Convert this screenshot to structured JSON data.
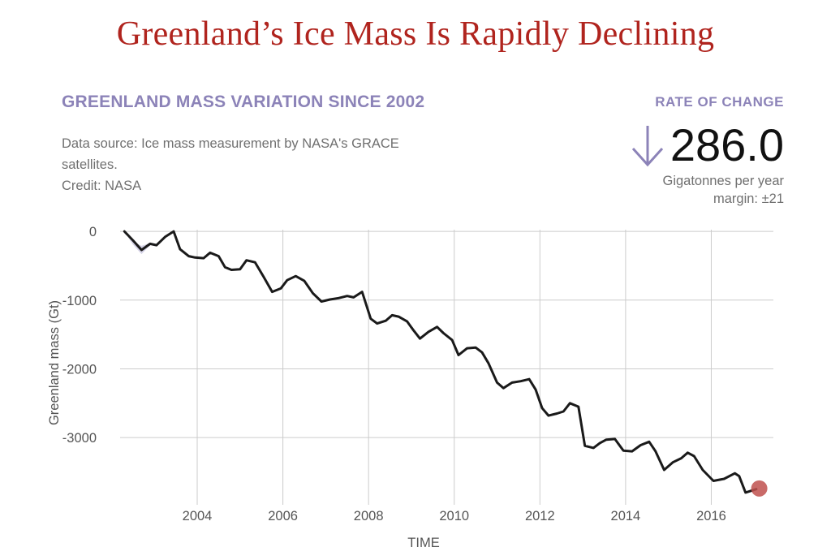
{
  "headline": "Greenland’s Ice Mass Is Rapidly Declining",
  "title": "GREENLAND MASS VARIATION SINCE 2002",
  "source_lines": [
    "Data source: Ice mass measurement by NASA's GRACE",
    "satellites.",
    "Credit: NASA"
  ],
  "rate": {
    "label": "RATE OF CHANGE",
    "value": "286.0",
    "unit": "Gigatonnes per year",
    "margin": "margin: ±21",
    "arrow_icon": "down-arrow-icon",
    "arrow_color": "#8c83b8"
  },
  "colors": {
    "headline": "#b0241e",
    "title": "#8c83b8",
    "line": "#1a1a1a",
    "band": "#b9b5d6",
    "endpoint": "#c0504d",
    "grid": "#cccccc"
  },
  "chart_data": {
    "type": "line",
    "xlabel": "TIME",
    "ylabel": "Greenland mass (Gt)",
    "xlim": [
      2002.2,
      2017.45
    ],
    "ylim": [
      -3860,
      25
    ],
    "x_ticks": [
      2004,
      2006,
      2008,
      2010,
      2012,
      2014,
      2016
    ],
    "x_tick_labels": [
      "2004",
      "2006",
      "2008",
      "2010",
      "2012",
      "2014",
      "2016"
    ],
    "y_ticks": [
      0,
      -1000,
      -2000,
      -3000
    ],
    "y_tick_labels": [
      "0",
      "-1000",
      "-2000",
      "-3000"
    ],
    "grid": true,
    "series": [
      {
        "x": [
          2002.3,
          2002.5,
          2002.7,
          2002.9,
          2003.05,
          2003.25,
          2003.45,
          2003.6,
          2003.8,
          2003.95,
          2004.15,
          2004.3,
          2004.5,
          2004.65,
          2004.8,
          2005.0,
          2005.15,
          2005.35,
          2005.55,
          2005.75,
          2005.95,
          2006.1,
          2006.3,
          2006.5,
          2006.7,
          2006.9,
          2007.1,
          2007.3,
          2007.5,
          2007.65,
          2007.85,
          2008.05,
          2008.2,
          2008.4,
          2008.55,
          2008.7,
          2008.9,
          2009.05,
          2009.2,
          2009.4,
          2009.6,
          2009.75,
          2009.95,
          2010.1,
          2010.3,
          2010.5,
          2010.65,
          2010.8,
          2011.0,
          2011.15,
          2011.35,
          2011.55,
          2011.75,
          2011.9,
          2012.05,
          2012.2,
          2012.4,
          2012.55,
          2012.7,
          2012.9,
          2013.05,
          2013.25,
          2013.4,
          2013.55,
          2013.75,
          2013.95,
          2014.15,
          2014.35,
          2014.55,
          2014.7,
          2014.9,
          2015.1,
          2015.3,
          2015.45,
          2015.6,
          2015.8,
          2016.05,
          2016.3,
          2016.55,
          2016.65,
          2016.8,
          2017.05
        ],
        "y": [
          0,
          -130,
          -270,
          -180,
          -200,
          -80,
          0,
          -260,
          -360,
          -380,
          -390,
          -310,
          -360,
          -520,
          -560,
          -550,
          -420,
          -450,
          -660,
          -880,
          -830,
          -710,
          -650,
          -720,
          -900,
          -1020,
          -990,
          -970,
          -940,
          -960,
          -880,
          -1270,
          -1340,
          -1300,
          -1220,
          -1240,
          -1310,
          -1440,
          -1560,
          -1460,
          -1390,
          -1480,
          -1580,
          -1800,
          -1700,
          -1690,
          -1760,
          -1920,
          -2200,
          -2280,
          -2200,
          -2180,
          -2150,
          -2300,
          -2570,
          -2680,
          -2650,
          -2620,
          -2500,
          -2550,
          -3120,
          -3150,
          -3080,
          -3030,
          -3020,
          -3190,
          -3200,
          -3110,
          -3060,
          -3200,
          -3470,
          -3360,
          -3300,
          -3220,
          -3270,
          -3470,
          -3630,
          -3600,
          -3520,
          -3560,
          -3800,
          -3750
        ]
      }
    ],
    "band_upper": [
      -30,
      -150,
      -210,
      -170,
      -190,
      -70,
      10,
      -240,
      -340,
      -370,
      -380,
      -300,
      -350,
      -505,
      -545,
      -540,
      -410,
      -440,
      -645,
      -865,
      -820,
      -700,
      -640,
      -710,
      -885,
      -1005,
      -980,
      -960,
      -930,
      -950,
      -870,
      -1255,
      -1325,
      -1290,
      -1210,
      -1230,
      -1300,
      -1425,
      -1545,
      -1450,
      -1380,
      -1470,
      -1565,
      -1785,
      -1690,
      -1680,
      -1750,
      -1905,
      -2185,
      -2265,
      -2190,
      -2170,
      -2140,
      -2285,
      -2555,
      -2665,
      -2640,
      -2610,
      -2490,
      -2540,
      -3105,
      -3135,
      -3070,
      -3020,
      -3010,
      -3175,
      -3185,
      -3100,
      -3050,
      -3185,
      -3455,
      -3350,
      -3290,
      -3210,
      -3260,
      -3455,
      -3615,
      -3590,
      -3510,
      -3550,
      -3785,
      -3740
    ],
    "band_lower": [
      -10,
      -190,
      -330,
      -200,
      -215,
      -95,
      -15,
      -280,
      -380,
      -395,
      -400,
      -325,
      -375,
      -535,
      -575,
      -565,
      -435,
      -465,
      -675,
      -895,
      -845,
      -725,
      -665,
      -735,
      -915,
      -1035,
      -1005,
      -985,
      -955,
      -975,
      -895,
      -1285,
      -1355,
      -1315,
      -1235,
      -1255,
      -1325,
      -1455,
      -1575,
      -1475,
      -1405,
      -1495,
      -1595,
      -1815,
      -1715,
      -1705,
      -1775,
      -1935,
      -2215,
      -2295,
      -2215,
      -2195,
      -2165,
      -2315,
      -2585,
      -2695,
      -2665,
      -2635,
      -2515,
      -2565,
      -3135,
      -3165,
      -3095,
      -3045,
      -3035,
      -3205,
      -3215,
      -3125,
      -3075,
      -3215,
      -3485,
      -3375,
      -3315,
      -3235,
      -3285,
      -3485,
      -3645,
      -3615,
      -3535,
      -3575,
      -3815,
      -3765
    ],
    "endpoint": {
      "x": 2017.12,
      "y": -3740
    }
  }
}
